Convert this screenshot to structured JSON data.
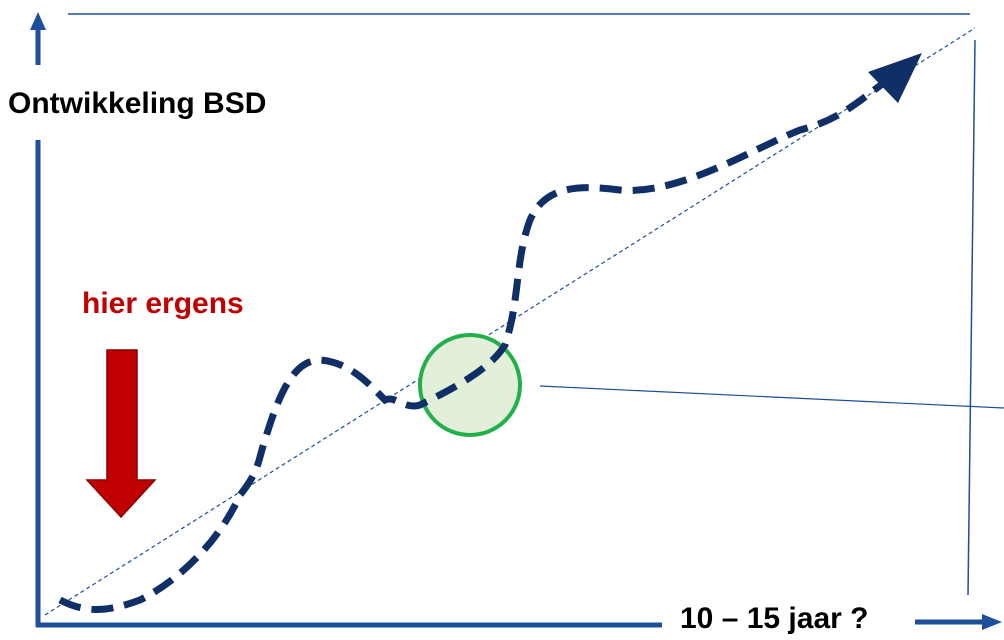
{
  "y_axis_label": "Ontwikkeling BSD",
  "annotation": "hier ergens",
  "x_axis_label": "10 – 15 jaar ?"
}
